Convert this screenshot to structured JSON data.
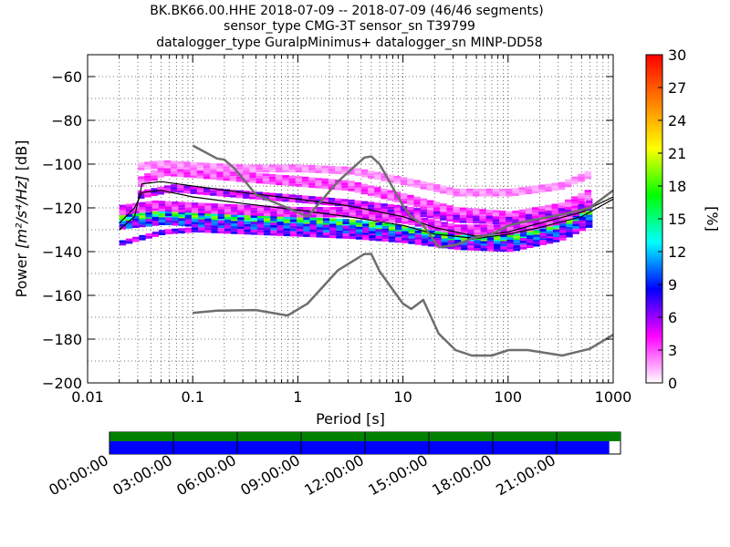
{
  "title": {
    "line1": "BK.BK66.00.HHE   2018-07-09 -- 2018-07-09  (46/46 segments)",
    "line2": "sensor_type CMG-3T sensor_sn T39799",
    "line3": "datalogger_type GuralpMinimus+ datalogger_sn MINP-DD58"
  },
  "chart_data": [
    {
      "type": "heatmap",
      "xlabel": "Period [s]",
      "ylabel_prefix": "Power ",
      "ylabel_units": "[m²/s⁴/Hz]",
      "ylabel_suffix": " [dB]",
      "x_scale": "log",
      "xlim": [
        0.01,
        1000
      ],
      "ylim": [
        -200,
        -50
      ],
      "x_ticks": [
        0.01,
        0.1,
        1,
        10,
        100,
        1000
      ],
      "x_tick_labels": [
        "0.01",
        "0.1",
        "1",
        "10",
        "100",
        "1000"
      ],
      "y_ticks": [
        -200,
        -180,
        -160,
        -140,
        -120,
        -100,
        -80,
        -60
      ],
      "y_tick_labels": [
        "−200",
        "−180",
        "−160",
        "−140",
        "−120",
        "−100",
        "−80",
        "−60"
      ],
      "grid": "dotted",
      "colorbar": {
        "label": "[%]",
        "range": [
          0,
          30
        ],
        "ticks": [
          0,
          3,
          6,
          9,
          12,
          15,
          18,
          21,
          24,
          27,
          30
        ],
        "tick_labels": [
          "0",
          "3",
          "6",
          "9",
          "12",
          "15",
          "18",
          "21",
          "24",
          "27",
          "30"
        ],
        "colors": [
          "#ffffff",
          "#ff00ff",
          "#0000ff",
          "#00ffff",
          "#00ff00",
          "#ffff00",
          "#ff8000",
          "#ff0000"
        ]
      },
      "high_noise_model": [
        [
          0.1,
          -91.5
        ],
        [
          0.17,
          -97.4
        ],
        [
          0.2,
          -98
        ],
        [
          0.25,
          -102
        ],
        [
          0.4,
          -114
        ],
        [
          0.8,
          -120
        ],
        [
          1.24,
          -124
        ],
        [
          2.4,
          -108
        ],
        [
          4.3,
          -97
        ],
        [
          5,
          -96.5
        ],
        [
          6,
          -100
        ],
        [
          10,
          -119
        ],
        [
          12,
          -124
        ],
        [
          15.6,
          -128
        ],
        [
          21.9,
          -138
        ],
        [
          31.6,
          -137
        ],
        [
          45,
          -134
        ],
        [
          70,
          -132
        ],
        [
          101,
          -128
        ],
        [
          154,
          -126
        ],
        [
          328,
          -123
        ],
        [
          600,
          -120
        ],
        [
          1000,
          -112
        ]
      ],
      "low_noise_model": [
        [
          0.1,
          -168
        ],
        [
          0.17,
          -167
        ],
        [
          0.4,
          -166.7
        ],
        [
          0.8,
          -169.2
        ],
        [
          1.24,
          -163.7
        ],
        [
          2.4,
          -148.6
        ],
        [
          4.3,
          -141.1
        ],
        [
          5,
          -141.1
        ],
        [
          6,
          -149
        ],
        [
          10,
          -163.8
        ],
        [
          12,
          -166.2
        ],
        [
          15.6,
          -162.1
        ],
        [
          21.9,
          -177.5
        ],
        [
          31.6,
          -185
        ],
        [
          45,
          -187.5
        ],
        [
          70,
          -187.5
        ],
        [
          101,
          -185
        ],
        [
          154,
          -185
        ],
        [
          328,
          -187.5
        ],
        [
          600,
          -184.4
        ],
        [
          1000,
          -178
        ]
      ],
      "mode_curve": [
        [
          0.02,
          -127
        ],
        [
          0.028,
          -120
        ],
        [
          0.033,
          -113
        ],
        [
          0.05,
          -112
        ],
        [
          0.1,
          -115
        ],
        [
          0.3,
          -118
        ],
        [
          1,
          -121
        ],
        [
          3,
          -124
        ],
        [
          10,
          -128
        ],
        [
          20,
          -132
        ],
        [
          50,
          -134
        ],
        [
          100,
          -132
        ],
        [
          200,
          -129
        ],
        [
          500,
          -124
        ],
        [
          1000,
          -116
        ]
      ],
      "mean_curve": [
        [
          0.02,
          -130
        ],
        [
          0.028,
          -124
        ],
        [
          0.033,
          -109
        ],
        [
          0.05,
          -108
        ],
        [
          0.1,
          -110
        ],
        [
          0.3,
          -113
        ],
        [
          1,
          -116
        ],
        [
          3,
          -119
        ],
        [
          10,
          -124
        ],
        [
          20,
          -129
        ],
        [
          50,
          -133
        ],
        [
          100,
          -131
        ],
        [
          200,
          -127
        ],
        [
          500,
          -122
        ],
        [
          1000,
          -115
        ]
      ],
      "bands": [
        {
          "x": [
            0.02,
            0.05,
            0.1,
            0.3,
            1,
            3,
            10,
            30,
            100,
            300,
            600
          ],
          "y": [
            -125,
            -123,
            -124,
            -125,
            -126,
            -127,
            -130,
            -134,
            -134,
            -128,
            -121
          ],
          "pct": 14,
          "thick": 3
        },
        {
          "x": [
            0.02,
            0.05,
            0.1,
            0.3,
            1,
            3,
            10,
            30,
            100,
            300,
            600
          ],
          "y": [
            -128,
            -126,
            -127,
            -128,
            -129,
            -130,
            -133,
            -137,
            -137,
            -131,
            -124
          ],
          "pct": 8,
          "thick": 3
        },
        {
          "x": [
            0.02,
            0.04,
            0.1,
            0.3,
            1,
            3,
            10,
            30,
            100,
            300,
            600
          ],
          "y": [
            -121,
            -119,
            -120,
            -121,
            -122,
            -122,
            -125,
            -130,
            -130,
            -125,
            -117
          ],
          "pct": 4,
          "thick": 4
        },
        {
          "x": [
            0.03,
            0.05,
            0.1,
            0.3,
            1,
            3,
            10,
            30,
            100,
            300,
            600
          ],
          "y": [
            -108,
            -103,
            -104,
            -106,
            -108,
            -110,
            -116,
            -122,
            -124,
            -120,
            -113
          ],
          "pct": 3,
          "thick": 4
        },
        {
          "x": [
            0.03,
            0.05,
            0.1,
            0.3,
            1,
            3,
            10,
            30,
            100,
            300,
            600
          ],
          "y": [
            -101,
            -100,
            -101,
            -102,
            -102,
            -103,
            -108,
            -113,
            -113,
            -110,
            -104
          ],
          "pct": 2,
          "thick": 3
        },
        {
          "x": [
            0.03,
            0.06,
            0.1,
            0.3,
            1,
            3,
            10,
            30,
            100,
            300,
            600
          ],
          "y": [
            -114,
            -111,
            -112,
            -114,
            -116,
            -118,
            -121,
            -125,
            -126,
            -122,
            -119
          ],
          "pct": 5,
          "thick": 3
        },
        {
          "x": [
            0.02,
            0.05,
            0.1,
            0.3,
            1,
            3,
            10,
            30,
            100,
            300,
            600
          ],
          "y": [
            -136,
            -131,
            -130,
            -131,
            -132,
            -133,
            -135,
            -138,
            -139,
            -134,
            -127
          ],
          "pct": 6,
          "thick": 2
        }
      ]
    },
    {
      "type": "timeline",
      "tick_labels": [
        "00:00:00",
        "03:00:00",
        "06:00:00",
        "09:00:00",
        "12:00:00",
        "15:00:00",
        "18:00:00",
        "21:00:00"
      ],
      "data_availability_fraction": 1.0,
      "segments_used_fraction": 0.978,
      "colors": {
        "availability": "#008000",
        "used": "#0000ff"
      }
    }
  ]
}
